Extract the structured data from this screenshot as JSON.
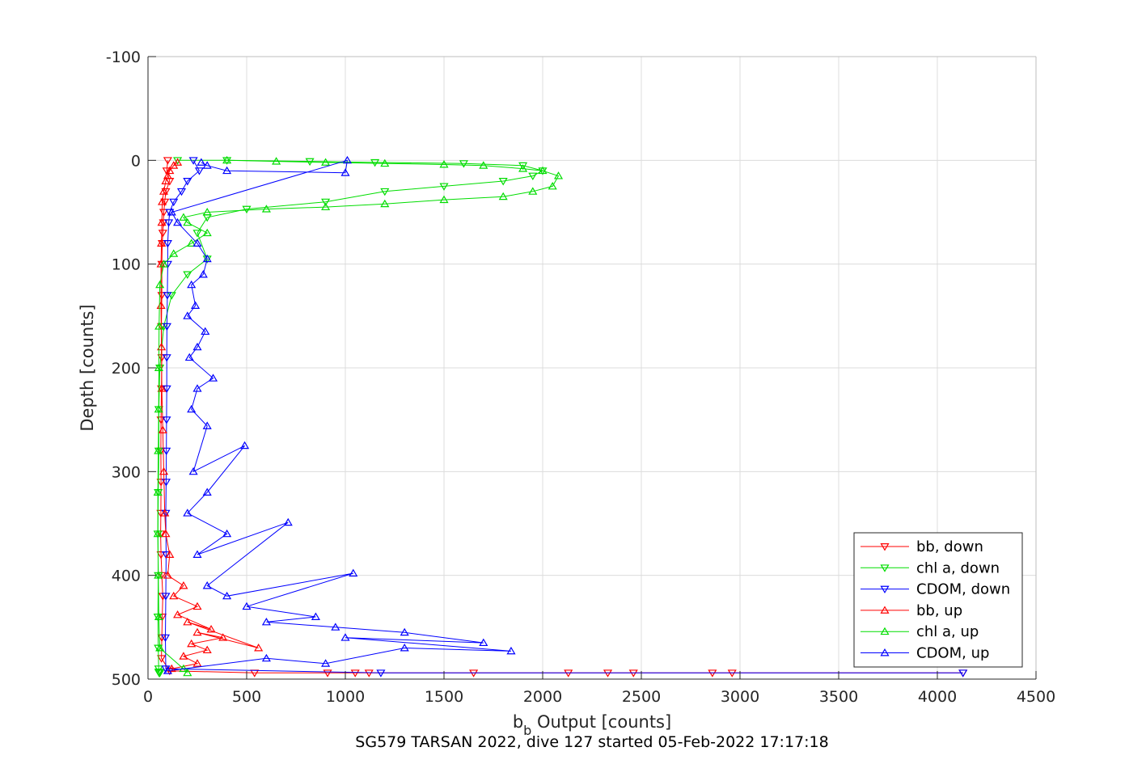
{
  "chart_data": {
    "type": "line",
    "caption": "SG579 TARSAN 2022, dive 127 started 05-Feb-2022 17:17:18",
    "xlabel_main": "b",
    "xlabel_sub": "b",
    "xlabel_rest": " Output [counts]",
    "ylabel": "Depth [counts]",
    "xlim": [
      0,
      4500
    ],
    "ylim": [
      -100,
      500
    ],
    "y_reversed": true,
    "grid": true,
    "legend_position": "bottom-right",
    "xticks": [
      "0",
      "500",
      "1000",
      "1500",
      "2000",
      "2500",
      "3000",
      "3500",
      "4000",
      "4500"
    ],
    "yticks": [
      "-100",
      "0",
      "100",
      "200",
      "300",
      "400",
      "500"
    ],
    "series": [
      {
        "name": "bb, down",
        "color": "#ff0000",
        "marker": "triangle-down",
        "x": [
          100,
          95,
          110,
          90,
          85,
          80,
          78,
          75,
          72,
          70,
          70,
          68,
          70,
          68,
          66,
          65,
          66,
          65,
          64,
          66,
          70,
          75,
          72,
          70,
          68,
          110,
          540,
          910,
          1050,
          1120,
          1650,
          2130,
          2330,
          2460,
          2860,
          2960,
          4130
        ],
        "y": [
          0,
          10,
          20,
          30,
          40,
          50,
          60,
          70,
          80,
          100,
          130,
          160,
          190,
          220,
          250,
          280,
          310,
          340,
          360,
          380,
          400,
          420,
          440,
          460,
          480,
          492,
          494,
          494,
          494,
          494,
          494,
          494,
          494,
          494,
          494,
          494,
          494
        ]
      },
      {
        "name": "chl a, down",
        "color": "#00dd00",
        "marker": "triangle-down",
        "x": [
          150,
          400,
          820,
          1150,
          1600,
          1900,
          2000,
          1950,
          1800,
          1500,
          1200,
          900,
          500,
          300,
          250,
          300,
          200,
          120,
          80,
          60,
          55,
          55,
          52,
          50,
          52,
          50,
          52,
          54,
          55,
          56,
          58,
          60
        ],
        "y": [
          0,
          0,
          1,
          2,
          3,
          5,
          10,
          15,
          20,
          25,
          30,
          40,
          47,
          55,
          70,
          95,
          110,
          130,
          160,
          200,
          240,
          280,
          320,
          360,
          400,
          440,
          470,
          490,
          493,
          494,
          494,
          494
        ]
      },
      {
        "name": "CDOM, down",
        "color": "#0000ff",
        "marker": "triangle-down",
        "x": [
          230,
          260,
          200,
          170,
          130,
          110,
          105,
          100,
          100,
          98,
          96,
          95,
          95,
          94,
          93,
          92,
          90,
          92,
          90,
          88,
          90,
          1180,
          4130
        ],
        "y": [
          0,
          10,
          20,
          30,
          40,
          50,
          60,
          80,
          100,
          130,
          160,
          190,
          220,
          250,
          280,
          310,
          340,
          380,
          420,
          460,
          490,
          494,
          494
        ]
      },
      {
        "name": "bb, up",
        "color": "#ff0000",
        "marker": "triangle-up",
        "x": [
          120,
          250,
          180,
          300,
          220,
          380,
          250,
          560,
          200,
          320,
          150,
          250,
          130,
          180,
          100,
          110,
          90,
          85,
          80,
          75,
          70,
          68,
          66,
          66,
          68,
          70,
          72,
          80,
          90,
          100,
          110,
          130,
          150
        ],
        "y": [
          490,
          485,
          478,
          472,
          466,
          460,
          455,
          470,
          445,
          452,
          438,
          430,
          420,
          410,
          400,
          380,
          360,
          340,
          300,
          260,
          220,
          180,
          140,
          100,
          80,
          60,
          40,
          30,
          20,
          15,
          10,
          5,
          2
        ]
      },
      {
        "name": "chl a, up",
        "color": "#00dd00",
        "marker": "triangle-up",
        "x": [
          200,
          180,
          60,
          55,
          52,
          50,
          50,
          52,
          54,
          55,
          56,
          60,
          80,
          130,
          220,
          300,
          200,
          180,
          300,
          600,
          900,
          1200,
          1500,
          1800,
          1950,
          2050,
          2080,
          2000,
          1900,
          1700,
          1500,
          1200,
          900,
          650,
          400
        ],
        "y": [
          494,
          490,
          470,
          440,
          400,
          360,
          320,
          280,
          240,
          200,
          160,
          120,
          100,
          90,
          80,
          70,
          60,
          55,
          50,
          47,
          45,
          42,
          38,
          35,
          30,
          25,
          15,
          10,
          8,
          5,
          4,
          3,
          2,
          1,
          0
        ]
      },
      {
        "name": "CDOM, up",
        "color": "#0000ff",
        "marker": "triangle-up",
        "x": [
          100,
          600,
          900,
          1300,
          1840,
          1000,
          1700,
          1300,
          950,
          600,
          850,
          500,
          1040,
          400,
          300,
          710,
          250,
          400,
          200,
          300,
          490,
          230,
          300,
          220,
          250,
          330,
          210,
          250,
          290,
          200,
          240,
          220,
          280,
          300,
          250,
          150,
          120,
          1010,
          1000,
          400,
          300,
          270
        ],
        "y": [
          492,
          480,
          485,
          470,
          473,
          460,
          465,
          455,
          450,
          445,
          440,
          430,
          398,
          420,
          410,
          349,
          380,
          360,
          340,
          320,
          275,
          300,
          256,
          240,
          220,
          210,
          190,
          180,
          165,
          150,
          140,
          120,
          110,
          95,
          80,
          60,
          50,
          0,
          12,
          10,
          5,
          2
        ]
      }
    ]
  }
}
